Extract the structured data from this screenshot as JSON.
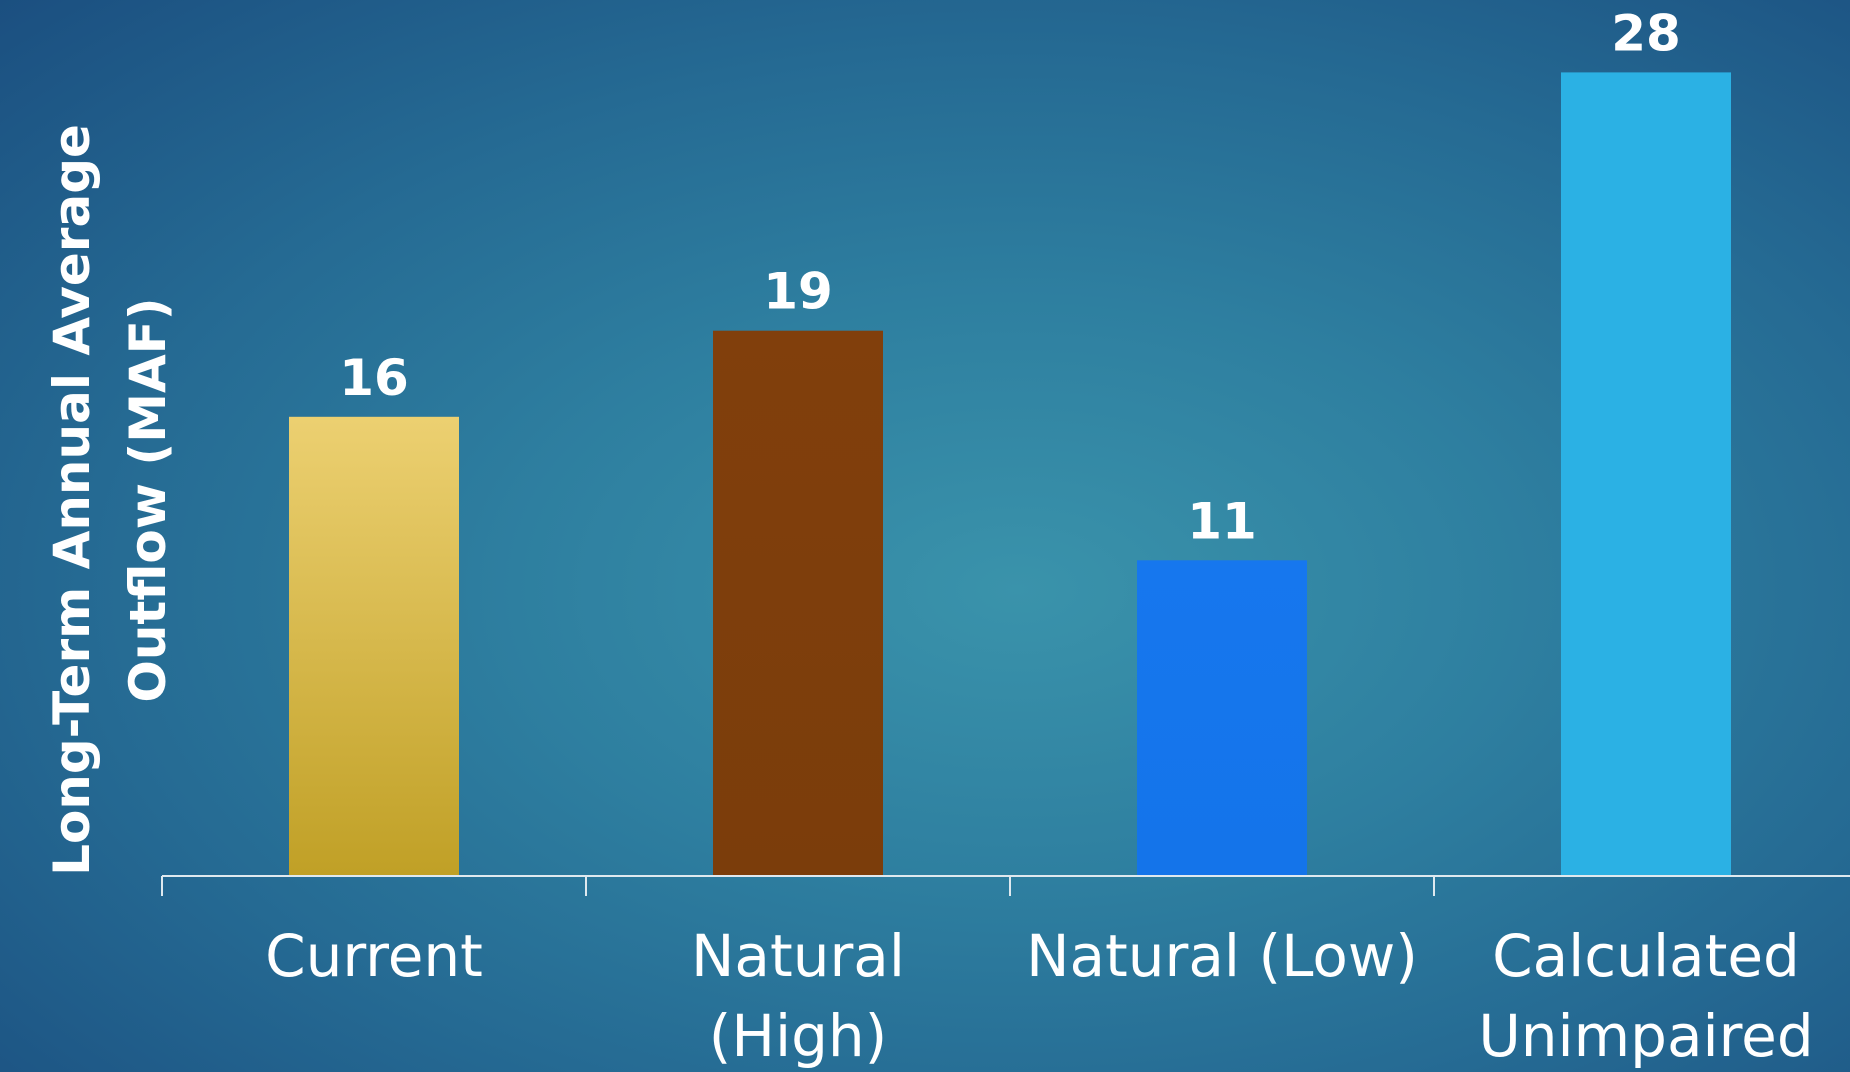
{
  "chart_data": {
    "type": "bar",
    "categories": [
      [
        "Current"
      ],
      [
        "Natural",
        "(High)"
      ],
      [
        "Natural (Low)"
      ],
      [
        "Calculated",
        "Unimpaired"
      ]
    ],
    "values": [
      16,
      19,
      11,
      28
    ],
    "data_labels": [
      "16",
      "19",
      "11",
      "28"
    ],
    "ylabel": [
      "Long-Term Annual Average",
      "Outflow (MAF)"
    ],
    "ylim": [
      0,
      30
    ],
    "grid": false,
    "legend": "none",
    "colors": [
      {
        "top": "#ecd071",
        "bottom": "#c0a026"
      },
      {
        "top": "#813f0c",
        "bottom": "#7b3d0b"
      },
      {
        "top": "#1677ee",
        "bottom": "#1474ea"
      },
      {
        "top": "#2bb1e4",
        "bottom": "#2bb1e4"
      }
    ],
    "axis_color": "#dfe9ef",
    "text_color": "#ffffff"
  }
}
